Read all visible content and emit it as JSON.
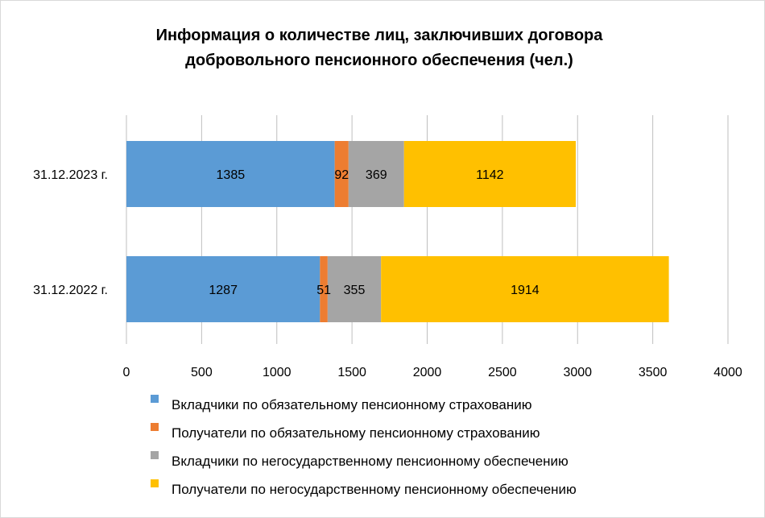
{
  "chart_data": {
    "type": "bar",
    "orientation": "horizontal",
    "stacked": true,
    "title": "Информация о количестве лиц, заключивших договора добровольного пенсионного обеспечения (чел.)",
    "title_lines": [
      "Информация о количестве лиц, заключивших договора",
      "добровольного пенсионного обеспечения (чел.)"
    ],
    "categories": [
      "31.12.2023 г.",
      "31.12.2022 г."
    ],
    "series": [
      {
        "name": "Вкладчики по обязательному пенсионному страхованию",
        "color": "#5b9bd5",
        "values": [
          1385,
          1287
        ]
      },
      {
        "name": "Получатели по обязательному пенсионному страхованию",
        "color": "#ed7d31",
        "values": [
          92,
          51
        ]
      },
      {
        "name": "Вкладчики по негосударственному пенсионному обеспечению",
        "color": "#a5a5a5",
        "values": [
          369,
          355
        ]
      },
      {
        "name": "Получатели по негосударственному пенсионному обеспечению",
        "color": "#ffc000",
        "values": [
          1142,
          1914
        ]
      }
    ],
    "xlim": [
      0,
      4000
    ],
    "xticks": [
      "0",
      "500",
      "1000",
      "1500",
      "2000",
      "2500",
      "3000",
      "3500",
      "4000"
    ],
    "xlabel": "",
    "ylabel": "",
    "grid": true,
    "data_labels": true,
    "legend_position": "bottom"
  }
}
